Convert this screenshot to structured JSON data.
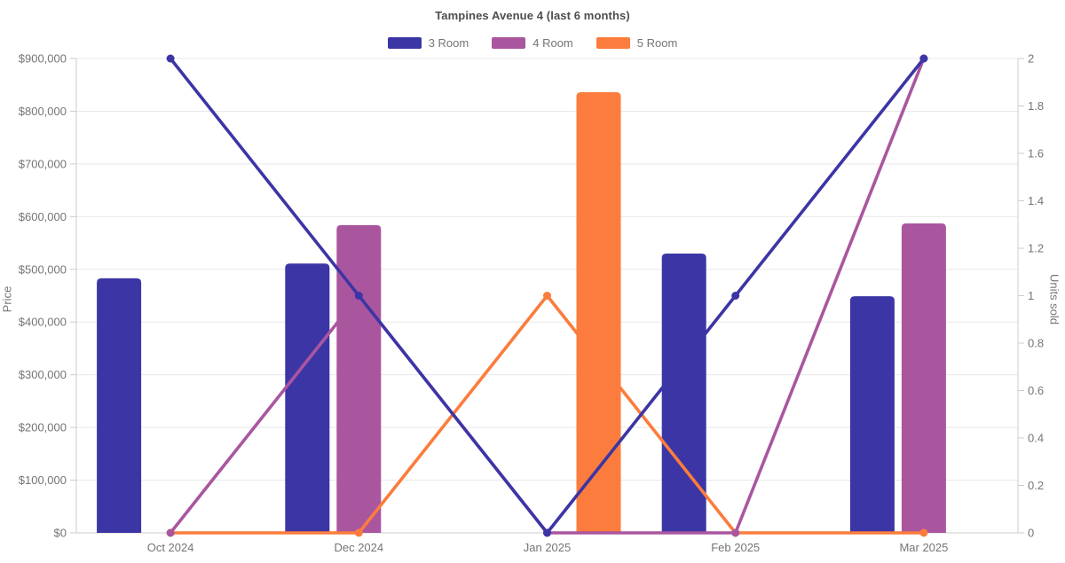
{
  "title": "Tampines Avenue 4 (last 6 months)",
  "legend": [
    {
      "label": "3 Room",
      "color": "#3c35a5"
    },
    {
      "label": "4 Room",
      "color": "#aa569f"
    },
    {
      "label": "5 Room",
      "color": "#fb7c3c"
    }
  ],
  "axes": {
    "left": {
      "title": "Price",
      "tick_labels": [
        "$0",
        "$100,000",
        "$200,000",
        "$300,000",
        "$400,000",
        "$500,000",
        "$600,000",
        "$700,000",
        "$800,000",
        "$900,000"
      ]
    },
    "right": {
      "title": "Units sold",
      "tick_labels": [
        "0",
        "0.2",
        "0.4",
        "0.6",
        "0.8",
        "1",
        "1.2",
        "1.4",
        "1.6",
        "1.8",
        "2"
      ]
    },
    "x": {
      "tick_labels": [
        "Oct 2024",
        "Dec 2024",
        "Jan 2025",
        "Feb 2025",
        "Mar 2025"
      ]
    }
  },
  "colors": {
    "title_text": "#4d4d4d",
    "axis_text": "#757575",
    "gridline": "#e8e8e8",
    "axis_line": "#cccccc",
    "background": "#ffffff"
  },
  "chart_data": {
    "type": "bar+line",
    "title": "Tampines Avenue 4 (last 6 months)",
    "categories": [
      "Oct 2024",
      "Dec 2024",
      "Jan 2025",
      "Feb 2025",
      "Mar 2025"
    ],
    "xlabel": "",
    "ylabel_left": "Price",
    "ylabel_right": "Units sold",
    "ylim_left": [
      0,
      900000
    ],
    "ylim_right": [
      0,
      2
    ],
    "left_tick_step": 100000,
    "right_tick_step": 0.2,
    "grid": "horizontal",
    "legend_position": "top",
    "bar_series": [
      {
        "name": "3 Room",
        "color": "#3c35a5",
        "axis": "left",
        "values": [
          483000,
          511000,
          null,
          530000,
          449000
        ]
      },
      {
        "name": "4 Room",
        "color": "#aa569f",
        "axis": "left",
        "values": [
          null,
          584000,
          null,
          null,
          587000
        ]
      },
      {
        "name": "5 Room",
        "color": "#fb7c3c",
        "axis": "left",
        "values": [
          null,
          null,
          836000,
          null,
          null
        ]
      }
    ],
    "line_series": [
      {
        "name": "3 Room",
        "color": "#3c35a5",
        "axis": "right",
        "values": [
          2,
          1,
          0,
          1,
          2
        ]
      },
      {
        "name": "4 Room",
        "color": "#aa569f",
        "axis": "right",
        "values": [
          0,
          1,
          0,
          0,
          2
        ]
      },
      {
        "name": "5 Room",
        "color": "#fb7c3c",
        "axis": "right",
        "values": [
          0,
          0,
          1,
          0,
          0
        ]
      }
    ]
  }
}
